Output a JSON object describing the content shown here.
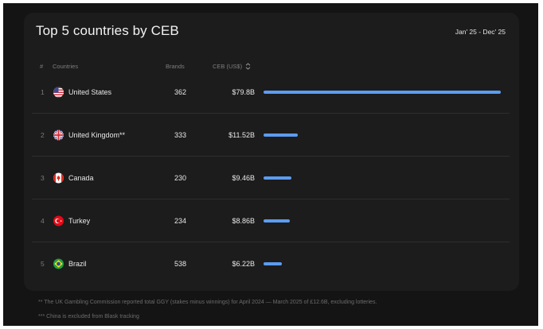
{
  "title": "Top 5 countries by CEB",
  "date_range": "Jan' 25 - Dec' 25",
  "columns": {
    "num": "#",
    "countries": "Countries",
    "brands": "Brands",
    "ceb": "CEB (US$)"
  },
  "rows": [
    {
      "rank": "1",
      "country": "United States",
      "flag": "us-flag-icon",
      "brands": "362",
      "ceb": "$79.8B",
      "ceb_value": 79.8
    },
    {
      "rank": "2",
      "country": "United Kingdom**",
      "flag": "uk-flag-icon",
      "brands": "333",
      "ceb": "$11.52B",
      "ceb_value": 11.52
    },
    {
      "rank": "3",
      "country": "Canada",
      "flag": "canada-flag-icon",
      "brands": "230",
      "ceb": "$9.46B",
      "ceb_value": 9.46
    },
    {
      "rank": "4",
      "country": "Turkey",
      "flag": "turkey-flag-icon",
      "brands": "234",
      "ceb": "$8.86B",
      "ceb_value": 8.86
    },
    {
      "rank": "5",
      "country": "Brazil",
      "flag": "brazil-flag-icon",
      "brands": "538",
      "ceb": "$6.22B",
      "ceb_value": 6.22
    }
  ],
  "bar_color": "#5c9cf0",
  "footnotes": [
    "** The UK Gambling Commission reported total GGY (stakes minus winnings) for April 2024 — March 2025 of £12.6B, excluding lotteries.",
    "*** China is excluded from Blask tracking"
  ]
}
